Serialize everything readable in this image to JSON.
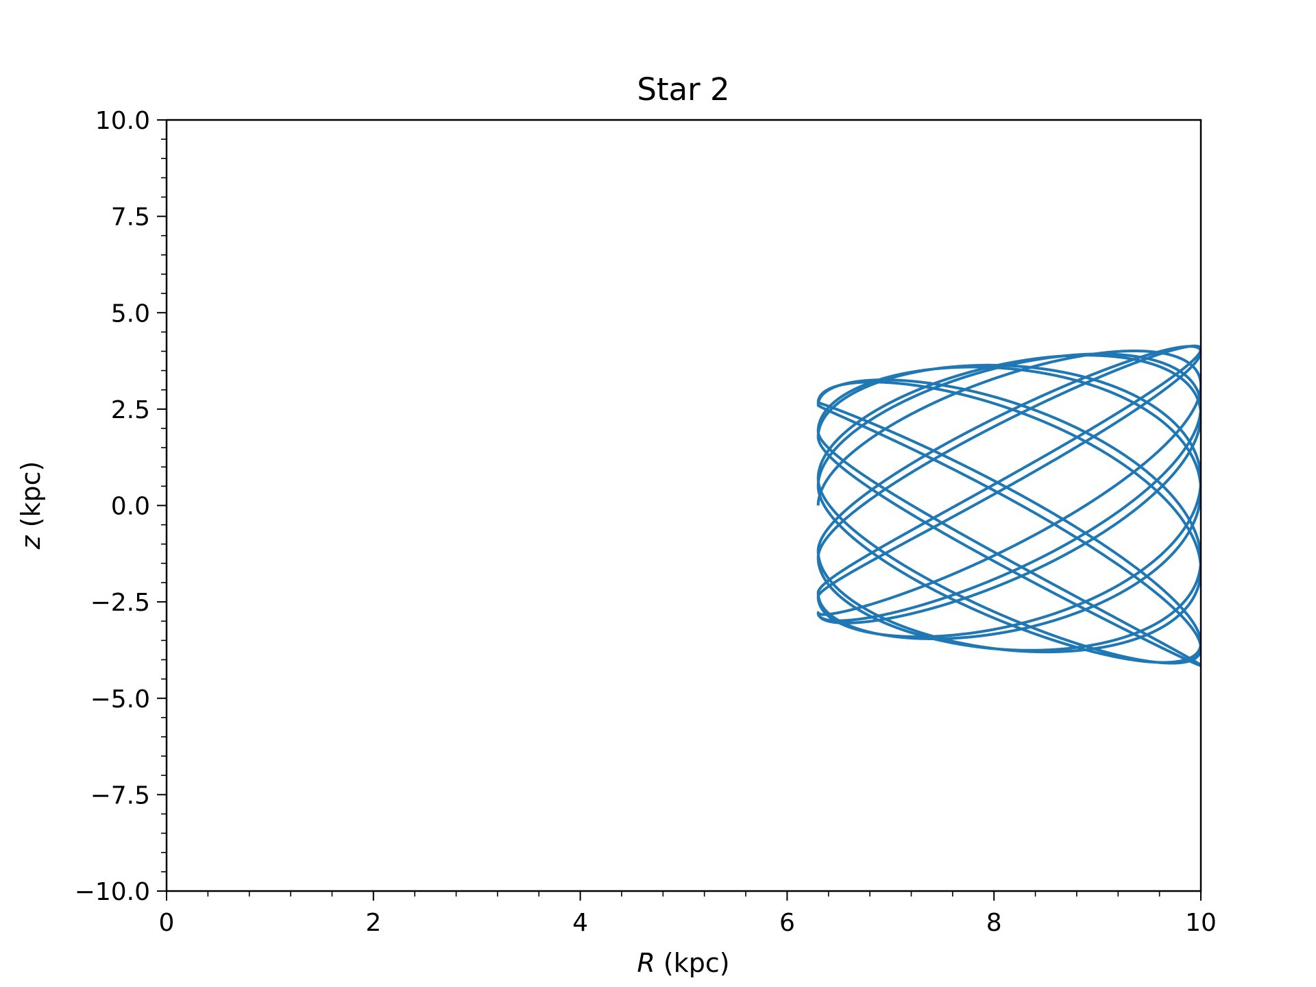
{
  "chart_data": {
    "type": "line",
    "title": "Star 2",
    "xlabel": {
      "symbol": "R",
      "unit": " (kpc)"
    },
    "ylabel": {
      "symbol": "z",
      "unit": " (kpc)"
    },
    "xlim": [
      0,
      10
    ],
    "ylim": [
      -10,
      10
    ],
    "xticks": [
      0,
      2,
      4,
      6,
      8,
      10
    ],
    "xtick_labels": [
      "0",
      "2",
      "4",
      "6",
      "8",
      "10"
    ],
    "xminor_step": 0.4,
    "yticks": [
      -10,
      -7.5,
      -5,
      -2.5,
      0,
      2.5,
      5,
      7.5,
      10
    ],
    "ytick_labels": [
      "−10.0",
      "−7.5",
      "−5.0",
      "−2.5",
      "0.0",
      "2.5",
      "5.0",
      "7.5",
      "10.0"
    ],
    "yminor_step": 0.5,
    "grid": false,
    "legend": "none",
    "series": [
      {
        "color": "#1f77b4",
        "orbit_model": {
          "r_min": 6.3,
          "r_max": 10.0,
          "z_amplitude": 4.15,
          "z_turnaround_at_r_min": 2.8,
          "r_at_z_zero_min": 6.8,
          "radial_period": 1.0,
          "vertical_period": 1.37,
          "t_span": 12
        }
      }
    ]
  }
}
